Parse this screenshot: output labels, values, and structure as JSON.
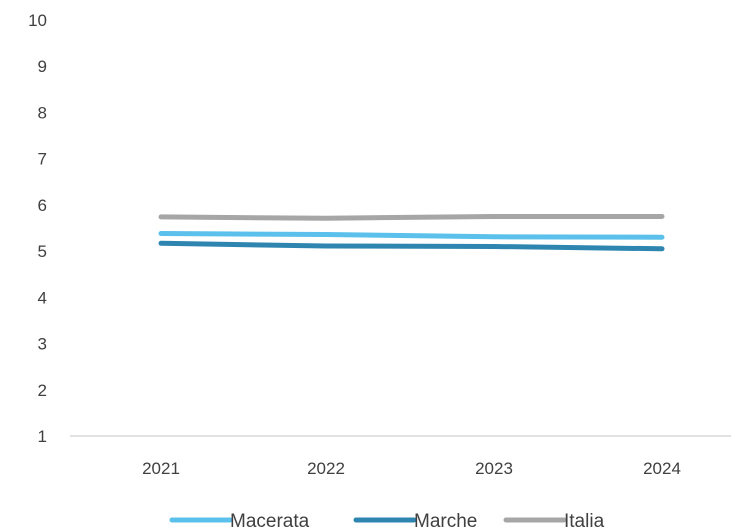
{
  "chart_data": {
    "type": "line",
    "categories": [
      "2021",
      "2022",
      "2023",
      "2024"
    ],
    "ylim": [
      1,
      10
    ],
    "yticks": [
      "1",
      "2",
      "3",
      "4",
      "5",
      "6",
      "7",
      "8",
      "9",
      "10"
    ],
    "grid": false,
    "legend_position": "bottom",
    "series": [
      {
        "name": "Macerata",
        "color": "#5bc0eb",
        "values": [
          5.38,
          5.36,
          5.31,
          5.3
        ]
      },
      {
        "name": "Marche",
        "color": "#2e86b0",
        "values": [
          5.17,
          5.11,
          5.1,
          5.05
        ]
      },
      {
        "name": "Italia",
        "color": "#a6a6a6",
        "values": [
          5.74,
          5.71,
          5.75,
          5.75
        ]
      }
    ]
  }
}
